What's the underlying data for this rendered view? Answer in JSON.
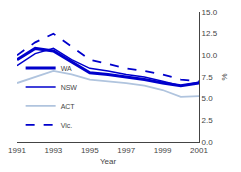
{
  "chart_data": {
    "type": "line",
    "xlabel": "Year",
    "ylabel": "%",
    "x": [
      1991,
      1992,
      1993,
      1994,
      1995,
      1996,
      1997,
      1998,
      1999,
      2000,
      2001
    ],
    "series": [
      {
        "name": "WA",
        "color": "#0000cc",
        "line_style": "solid",
        "values": [
          9.5,
          10.8,
          10.5,
          9.2,
          8.0,
          7.8,
          7.5,
          7.2,
          6.8,
          6.5,
          6.8
        ]
      },
      {
        "name": "NSW",
        "color": "#0000cc",
        "line_style": "solid",
        "values": [
          8.8,
          10.2,
          10.8,
          9.5,
          8.5,
          8.2,
          7.8,
          7.5,
          7.0,
          6.5,
          6.9
        ]
      },
      {
        "name": "ACT",
        "color": "#b0c4de",
        "line_style": "solid",
        "values": [
          6.8,
          7.5,
          8.2,
          7.8,
          7.2,
          7.0,
          6.8,
          6.5,
          6.0,
          5.2,
          5.3
        ]
      },
      {
        "name": "Vic.",
        "color": "#0000cc",
        "line_style": "dashed",
        "values": [
          10.0,
          11.5,
          12.5,
          11.0,
          9.5,
          9.0,
          8.5,
          8.2,
          7.8,
          7.2,
          7.0
        ]
      }
    ],
    "xlim": [
      1991,
      2001
    ],
    "xticks": [
      1991,
      1993,
      1995,
      1997,
      1999,
      2001
    ],
    "ylim": [
      0.0,
      15.0
    ],
    "yticks": [
      {
        "value": 0.0,
        "label": "0.0"
      },
      2.5,
      {
        "value": 5.0,
        "label": "5.0"
      },
      7.5,
      {
        "value": 10.0,
        "label": "10.0"
      },
      12.5,
      {
        "value": 15.0,
        "label": "15.0"
      }
    ],
    "grid": false,
    "legend": "lower left"
  }
}
